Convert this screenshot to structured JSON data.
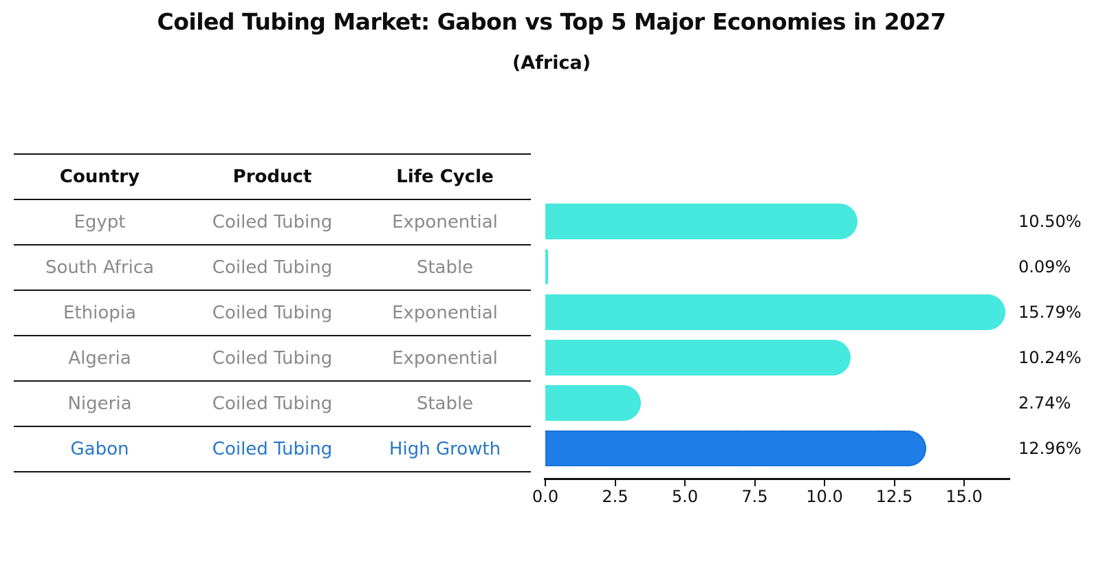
{
  "title": "Coiled Tubing Market: Gabon vs Top 5 Major Economies in 2027",
  "subtitle": "(Africa)",
  "table": {
    "headers": [
      "Country",
      "Product",
      "Life Cycle"
    ],
    "rows": [
      {
        "country": "Egypt",
        "product": "Coiled Tubing",
        "life_cycle": "Exponential"
      },
      {
        "country": "South Africa",
        "product": "Coiled Tubing",
        "life_cycle": "Stable"
      },
      {
        "country": "Ethiopia",
        "product": "Coiled Tubing",
        "life_cycle": "Exponential"
      },
      {
        "country": "Algeria",
        "product": "Coiled Tubing",
        "life_cycle": "Exponential"
      },
      {
        "country": "Nigeria",
        "product": "Coiled Tubing",
        "life_cycle": "Stable"
      },
      {
        "country": "Gabon",
        "product": "Coiled Tubing",
        "life_cycle": "High Growth"
      }
    ],
    "highlight_row": "Gabon"
  },
  "chart_data": {
    "type": "bar",
    "orientation": "horizontal",
    "categories": [
      "Egypt",
      "South Africa",
      "Ethiopia",
      "Algeria",
      "Nigeria",
      "Gabon"
    ],
    "values": [
      10.5,
      0.09,
      15.79,
      10.24,
      2.74,
      12.96
    ],
    "value_labels": [
      "10.50%",
      "0.09%",
      "15.79%",
      "10.24%",
      "2.74%",
      "12.96%"
    ],
    "unit": "percent",
    "xticks": [
      0.0,
      2.5,
      5.0,
      7.5,
      10.0,
      12.5,
      15.0
    ],
    "xtick_labels": [
      "0.0",
      "2.5",
      "5.0",
      "7.5",
      "10.0",
      "12.5",
      "15.0"
    ],
    "xlim": [
      0,
      16.7
    ],
    "grid": false,
    "legend": null,
    "highlight_index": 5,
    "colors": {
      "bar_default": "#47E8DE",
      "bar_highlight": "#1E7DE6",
      "bar_highlight_border": "#1566CF",
      "highlight_text": "#2878CA",
      "row_text": "#8A8A8A",
      "axis": "#111111"
    }
  }
}
